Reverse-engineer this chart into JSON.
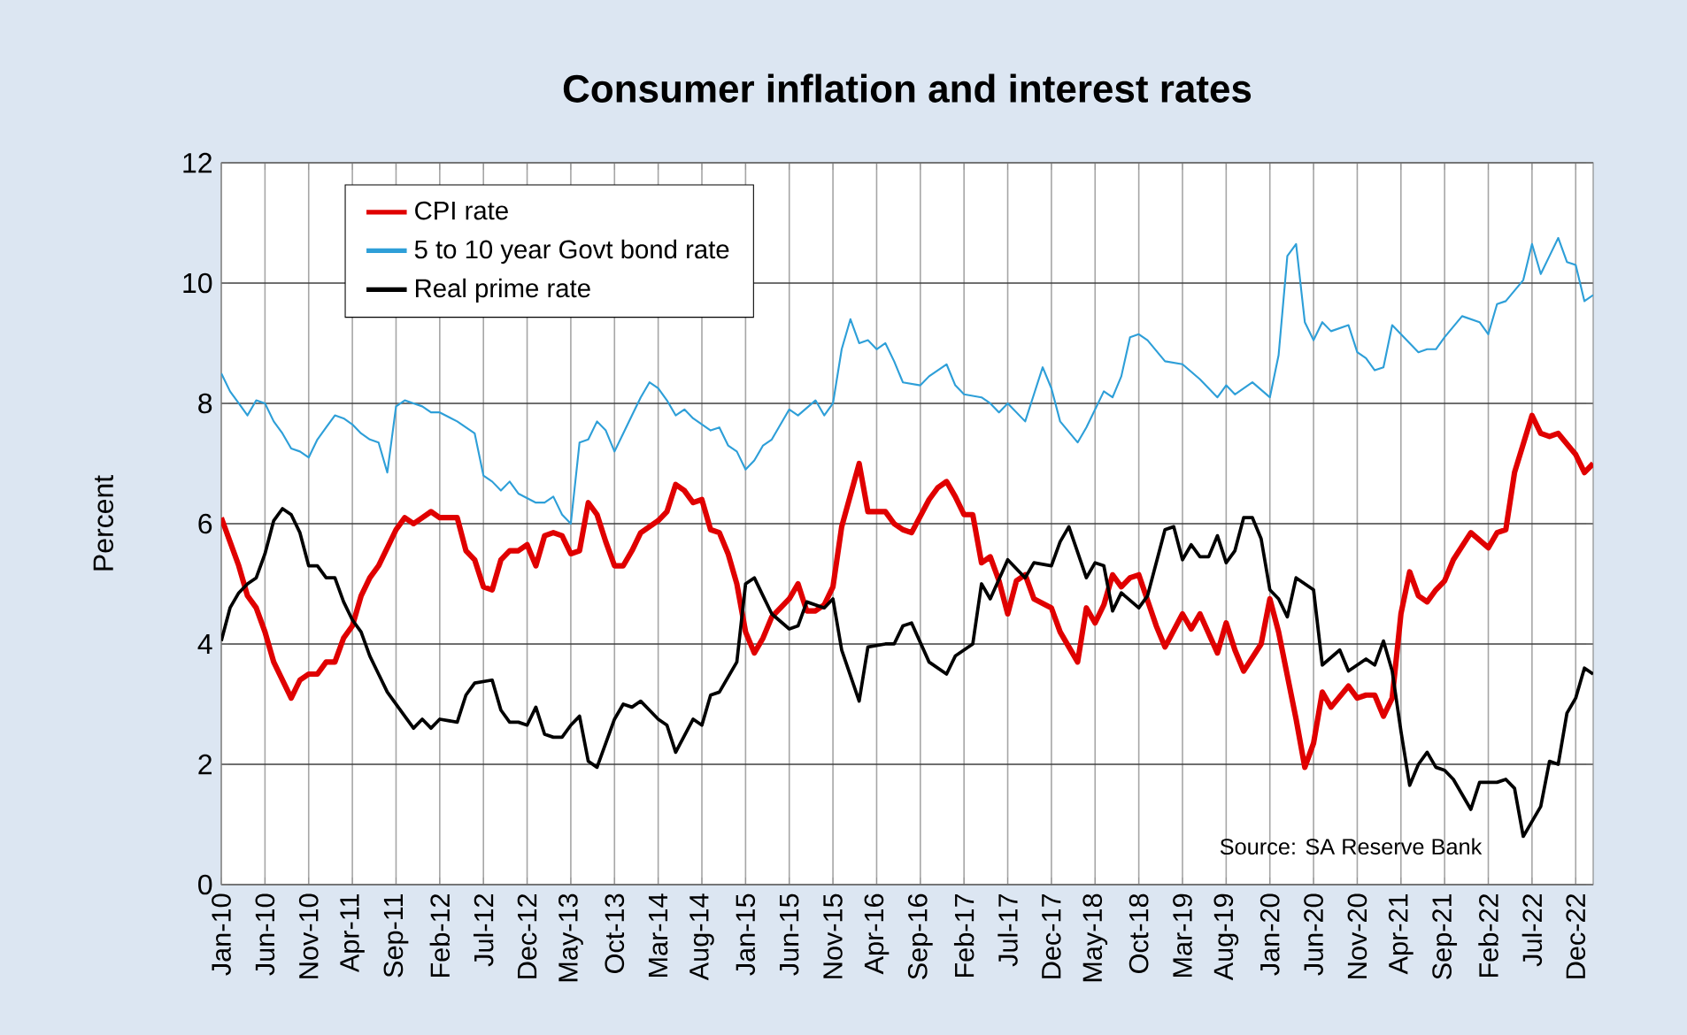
{
  "chart_data": {
    "type": "line",
    "title": "Consumer inflation and interest rates",
    "ylabel": "Percent",
    "xlim": [
      "2010-01",
      "2023-02"
    ],
    "ylim": [
      0,
      12
    ],
    "yticks": [
      0,
      2,
      4,
      6,
      8,
      10,
      12
    ],
    "xticks": [
      {
        "value": "2010-01",
        "label": "Jan-10"
      },
      {
        "value": "2010-06",
        "label": "Jun-10"
      },
      {
        "value": "2010-11",
        "label": "Nov-10"
      },
      {
        "value": "2011-04",
        "label": "Apr-11"
      },
      {
        "value": "2011-09",
        "label": "Sep-11"
      },
      {
        "value": "2012-02",
        "label": "Feb-12"
      },
      {
        "value": "2012-07",
        "label": "Jul-12"
      },
      {
        "value": "2012-12",
        "label": "Dec-12"
      },
      {
        "value": "2013-05",
        "label": "May-13"
      },
      {
        "value": "2013-10",
        "label": "Oct-13"
      },
      {
        "value": "2014-03",
        "label": "Mar-14"
      },
      {
        "value": "2014-08",
        "label": "Aug-14"
      },
      {
        "value": "2015-01",
        "label": "Jan-15"
      },
      {
        "value": "2015-06",
        "label": "Jun-15"
      },
      {
        "value": "2015-11",
        "label": "Nov-15"
      },
      {
        "value": "2016-04",
        "label": "Apr-16"
      },
      {
        "value": "2016-09",
        "label": "Sep-16"
      },
      {
        "value": "2017-02",
        "label": "Feb-17"
      },
      {
        "value": "2017-07",
        "label": "Jul-17"
      },
      {
        "value": "2017-12",
        "label": "Dec-17"
      },
      {
        "value": "2018-05",
        "label": "May-18"
      },
      {
        "value": "2018-10",
        "label": "Oct-18"
      },
      {
        "value": "2019-03",
        "label": "Mar-19"
      },
      {
        "value": "2019-08",
        "label": "Aug-19"
      },
      {
        "value": "2020-01",
        "label": "Jan-20"
      },
      {
        "value": "2020-06",
        "label": "Jun-20"
      },
      {
        "value": "2020-11",
        "label": "Nov-20"
      },
      {
        "value": "2021-04",
        "label": "Apr-21"
      },
      {
        "value": "2021-09",
        "label": "Sep-21"
      },
      {
        "value": "2022-02",
        "label": "Feb-22"
      },
      {
        "value": "2022-07",
        "label": "Jul-22"
      },
      {
        "value": "2022-12",
        "label": "Dec-22"
      }
    ],
    "grid": true,
    "legend": "top left",
    "annotations": [
      "Source: SA Reserve Bank"
    ],
    "series": [
      {
        "name": "CPI rate",
        "color": "#e00000",
        "x": [
          "2010-01",
          "2010-03",
          "2010-04",
          "2010-05",
          "2010-06",
          "2010-07",
          "2010-08",
          "2010-09",
          "2010-10",
          "2010-11",
          "2010-12",
          "2011-01",
          "2011-02",
          "2011-03",
          "2011-04",
          "2011-05",
          "2011-06",
          "2011-07",
          "2011-08",
          "2011-09",
          "2011-10",
          "2011-11",
          "2011-12",
          "2012-01",
          "2012-02",
          "2012-04",
          "2012-05",
          "2012-06",
          "2012-07",
          "2012-08",
          "2012-09",
          "2012-10",
          "2012-11",
          "2012-12",
          "2013-01",
          "2013-02",
          "2013-03",
          "2013-04",
          "2013-05",
          "2013-06",
          "2013-07",
          "2013-08",
          "2013-09",
          "2013-10",
          "2013-11",
          "2013-12",
          "2014-01",
          "2014-03",
          "2014-04",
          "2014-05",
          "2014-06",
          "2014-07",
          "2014-08",
          "2014-09",
          "2014-10",
          "2014-11",
          "2014-12",
          "2015-01",
          "2015-02",
          "2015-03",
          "2015-04",
          "2015-06",
          "2015-07",
          "2015-08",
          "2015-09",
          "2015-10",
          "2015-11",
          "2015-12",
          "2016-02",
          "2016-03",
          "2016-05",
          "2016-06",
          "2016-07",
          "2016-08",
          "2016-10",
          "2016-11",
          "2016-12",
          "2017-01",
          "2017-02",
          "2017-03",
          "2017-04",
          "2017-05",
          "2017-06",
          "2017-07",
          "2017-08",
          "2017-09",
          "2017-10",
          "2017-12",
          "2018-01",
          "2018-03",
          "2018-04",
          "2018-05",
          "2018-06",
          "2018-07",
          "2018-08",
          "2018-09",
          "2018-10",
          "2018-12",
          "2019-01",
          "2019-03",
          "2019-04",
          "2019-05",
          "2019-07",
          "2019-08",
          "2019-09",
          "2019-10",
          "2019-12",
          "2020-01",
          "2020-02",
          "2020-04",
          "2020-05",
          "2020-06",
          "2020-07",
          "2020-08",
          "2020-10",
          "2020-11",
          "2020-12",
          "2021-01",
          "2021-02",
          "2021-03",
          "2021-04",
          "2021-05",
          "2021-06",
          "2021-07",
          "2021-08",
          "2021-09",
          "2021-10",
          "2021-12",
          "2022-02",
          "2022-03",
          "2022-04",
          "2022-05",
          "2022-07",
          "2022-08",
          "2022-09",
          "2022-10",
          "2022-12",
          "2023-01",
          "2023-02"
        ],
        "values": [
          6.1,
          5.3,
          4.8,
          4.6,
          4.2,
          3.7,
          3.4,
          3.1,
          3.4,
          3.5,
          3.5,
          3.7,
          3.7,
          4.1,
          4.3,
          4.8,
          5.1,
          5.3,
          5.6,
          5.9,
          6.1,
          6.0,
          6.1,
          6.2,
          6.1,
          6.1,
          5.55,
          5.4,
          4.95,
          4.9,
          5.4,
          5.55,
          5.55,
          5.65,
          5.3,
          5.8,
          5.85,
          5.8,
          5.5,
          5.55,
          6.35,
          6.15,
          5.7,
          5.3,
          5.3,
          5.55,
          5.85,
          6.05,
          6.2,
          6.65,
          6.55,
          6.35,
          6.4,
          5.9,
          5.85,
          5.5,
          5.0,
          4.2,
          3.85,
          4.1,
          4.45,
          4.75,
          5.0,
          4.55,
          4.55,
          4.65,
          4.95,
          5.95,
          7.0,
          6.2,
          6.2,
          6.0,
          5.9,
          5.85,
          6.4,
          6.6,
          6.7,
          6.45,
          6.15,
          6.15,
          5.35,
          5.45,
          5.05,
          4.5,
          5.05,
          5.15,
          4.75,
          4.6,
          4.2,
          3.7,
          4.6,
          4.35,
          4.65,
          5.15,
          4.95,
          5.1,
          5.15,
          4.3,
          3.95,
          4.5,
          4.25,
          4.5,
          3.85,
          4.35,
          3.9,
          3.55,
          4.0,
          4.75,
          4.2,
          2.75,
          1.95,
          2.35,
          3.2,
          2.95,
          3.3,
          3.1,
          3.15,
          3.15,
          2.8,
          3.1,
          4.5,
          5.2,
          4.8,
          4.7,
          4.9,
          5.05,
          5.4,
          5.85,
          5.6,
          5.85,
          5.9,
          6.85,
          7.8,
          7.5,
          7.45,
          7.5,
          7.15,
          6.85,
          7.0
        ]
      },
      {
        "name": "5 to 10 year Govt bond rate",
        "color": "#2e9fd8",
        "x": [
          "2010-01",
          "2010-02",
          "2010-03",
          "2010-04",
          "2010-05",
          "2010-06",
          "2010-07",
          "2010-08",
          "2010-09",
          "2010-10",
          "2010-11",
          "2010-12",
          "2011-01",
          "2011-02",
          "2011-03",
          "2011-04",
          "2011-05",
          "2011-06",
          "2011-07",
          "2011-08",
          "2011-09",
          "2011-10",
          "2011-11",
          "2011-12",
          "2012-01",
          "2012-02",
          "2012-04",
          "2012-06",
          "2012-07",
          "2012-08",
          "2012-09",
          "2012-10",
          "2012-11",
          "2013-01",
          "2013-02",
          "2013-03",
          "2013-04",
          "2013-05",
          "2013-06",
          "2013-07",
          "2013-08",
          "2013-09",
          "2013-10",
          "2013-11",
          "2013-12",
          "2014-01",
          "2014-02",
          "2014-03",
          "2014-04",
          "2014-05",
          "2014-06",
          "2014-07",
          "2014-09",
          "2014-10",
          "2014-11",
          "2014-12",
          "2015-01",
          "2015-02",
          "2015-03",
          "2015-04",
          "2015-06",
          "2015-07",
          "2015-09",
          "2015-10",
          "2015-11",
          "2015-12",
          "2016-01",
          "2016-02",
          "2016-03",
          "2016-04",
          "2016-05",
          "2016-06",
          "2016-07",
          "2016-09",
          "2016-10",
          "2016-12",
          "2017-01",
          "2017-02",
          "2017-04",
          "2017-05",
          "2017-06",
          "2017-07",
          "2017-09",
          "2017-10",
          "2017-11",
          "2017-12",
          "2018-01",
          "2018-03",
          "2018-04",
          "2018-06",
          "2018-07",
          "2018-08",
          "2018-09",
          "2018-10",
          "2018-11",
          "2019-01",
          "2019-03",
          "2019-05",
          "2019-07",
          "2019-08",
          "2019-09",
          "2019-11",
          "2020-01",
          "2020-02",
          "2020-03",
          "2020-04",
          "2020-05",
          "2020-06",
          "2020-07",
          "2020-08",
          "2020-10",
          "2020-11",
          "2020-12",
          "2021-01",
          "2021-02",
          "2021-03",
          "2021-04",
          "2021-06",
          "2021-07",
          "2021-08",
          "2021-09",
          "2021-11",
          "2022-01",
          "2022-02",
          "2022-03",
          "2022-04",
          "2022-06",
          "2022-07",
          "2022-08",
          "2022-09",
          "2022-10",
          "2022-11",
          "2022-12",
          "2023-01",
          "2023-02"
        ],
        "values": [
          8.5,
          8.2,
          8.0,
          7.8,
          8.05,
          8.0,
          7.7,
          7.5,
          7.25,
          7.2,
          7.1,
          7.4,
          7.6,
          7.8,
          7.75,
          7.65,
          7.5,
          7.4,
          7.35,
          6.85,
          7.95,
          8.05,
          8.0,
          7.95,
          7.85,
          7.85,
          7.7,
          7.5,
          6.8,
          6.7,
          6.55,
          6.7,
          6.5,
          6.35,
          6.35,
          6.45,
          6.15,
          6.0,
          7.35,
          7.4,
          7.7,
          7.55,
          7.2,
          7.5,
          7.8,
          8.1,
          8.35,
          8.25,
          8.05,
          7.8,
          7.9,
          7.75,
          7.55,
          7.6,
          7.3,
          7.2,
          6.9,
          7.05,
          7.3,
          7.4,
          7.9,
          7.8,
          8.05,
          7.8,
          8.0,
          8.9,
          9.4,
          9.0,
          9.05,
          8.9,
          9.0,
          8.7,
          8.35,
          8.3,
          8.45,
          8.65,
          8.3,
          8.15,
          8.1,
          8.0,
          7.85,
          8.0,
          7.7,
          8.15,
          8.6,
          8.25,
          7.7,
          7.35,
          7.6,
          8.2,
          8.1,
          8.45,
          9.1,
          9.15,
          9.05,
          8.7,
          8.65,
          8.4,
          8.1,
          8.3,
          8.15,
          8.35,
          8.1,
          8.8,
          10.45,
          10.65,
          9.35,
          9.05,
          9.35,
          9.2,
          9.3,
          8.85,
          8.75,
          8.55,
          8.6,
          9.3,
          9.15,
          8.85,
          8.9,
          8.9,
          9.1,
          9.45,
          9.35,
          9.15,
          9.65,
          9.7,
          10.05,
          10.65,
          10.15,
          10.45,
          10.75,
          10.35,
          10.3,
          9.7,
          9.8
        ]
      },
      {
        "name": "Real prime rate",
        "color": "#000000",
        "x": [
          "2010-01",
          "2010-02",
          "2010-03",
          "2010-04",
          "2010-05",
          "2010-06",
          "2010-07",
          "2010-08",
          "2010-09",
          "2010-10",
          "2010-11",
          "2010-12",
          "2011-01",
          "2011-02",
          "2011-03",
          "2011-04",
          "2011-05",
          "2011-06",
          "2011-07",
          "2011-08",
          "2011-09",
          "2011-10",
          "2011-11",
          "2011-12",
          "2012-01",
          "2012-02",
          "2012-04",
          "2012-05",
          "2012-06",
          "2012-08",
          "2012-09",
          "2012-10",
          "2012-11",
          "2012-12",
          "2013-01",
          "2013-02",
          "2013-03",
          "2013-04",
          "2013-05",
          "2013-06",
          "2013-07",
          "2013-08",
          "2013-09",
          "2013-10",
          "2013-11",
          "2013-12",
          "2014-01",
          "2014-02",
          "2014-03",
          "2014-04",
          "2014-05",
          "2014-07",
          "2014-08",
          "2014-09",
          "2014-10",
          "2014-12",
          "2015-01",
          "2015-02",
          "2015-03",
          "2015-04",
          "2015-06",
          "2015-07",
          "2015-08",
          "2015-10",
          "2015-11",
          "2015-12",
          "2016-02",
          "2016-03",
          "2016-05",
          "2016-06",
          "2016-07",
          "2016-08",
          "2016-10",
          "2016-12",
          "2017-01",
          "2017-03",
          "2017-04",
          "2017-05",
          "2017-07",
          "2017-09",
          "2017-10",
          "2017-12",
          "2018-01",
          "2018-02",
          "2018-04",
          "2018-05",
          "2018-06",
          "2018-07",
          "2018-08",
          "2018-10",
          "2018-11",
          "2018-12",
          "2019-01",
          "2019-02",
          "2019-03",
          "2019-04",
          "2019-05",
          "2019-06",
          "2019-07",
          "2019-08",
          "2019-09",
          "2019-10",
          "2019-11",
          "2019-12",
          "2020-01",
          "2020-02",
          "2020-03",
          "2020-04",
          "2020-06",
          "2020-07",
          "2020-09",
          "2020-10",
          "2020-11",
          "2020-12",
          "2021-01",
          "2021-02",
          "2021-03",
          "2021-04",
          "2021-05",
          "2021-06",
          "2021-07",
          "2021-08",
          "2021-09",
          "2021-10",
          "2021-12",
          "2022-01",
          "2022-03",
          "2022-04",
          "2022-05",
          "2022-06",
          "2022-07",
          "2022-08",
          "2022-09",
          "2022-10",
          "2022-11",
          "2022-12",
          "2023-01",
          "2023-02"
        ],
        "values": [
          4.05,
          4.6,
          4.85,
          5.0,
          5.1,
          5.5,
          6.05,
          6.25,
          6.15,
          5.85,
          5.3,
          5.3,
          5.1,
          5.1,
          4.7,
          4.4,
          4.2,
          3.8,
          3.5,
          3.2,
          3.0,
          2.8,
          2.6,
          2.75,
          2.6,
          2.75,
          2.7,
          3.15,
          3.35,
          3.4,
          2.9,
          2.7,
          2.7,
          2.65,
          2.95,
          2.5,
          2.45,
          2.45,
          2.65,
          2.8,
          2.05,
          1.95,
          2.35,
          2.75,
          3.0,
          2.95,
          3.05,
          2.9,
          2.75,
          2.65,
          2.2,
          2.75,
          2.65,
          3.15,
          3.2,
          3.7,
          5.0,
          5.1,
          4.8,
          4.5,
          4.25,
          4.3,
          4.7,
          4.6,
          4.75,
          3.9,
          3.05,
          3.95,
          4.0,
          4.0,
          4.3,
          4.35,
          3.7,
          3.5,
          3.8,
          4.0,
          5.0,
          4.75,
          5.4,
          5.1,
          5.35,
          5.3,
          5.7,
          5.95,
          5.1,
          5.35,
          5.3,
          4.55,
          4.85,
          4.6,
          4.8,
          5.35,
          5.9,
          5.95,
          5.4,
          5.65,
          5.45,
          5.45,
          5.8,
          5.35,
          5.55,
          6.1,
          6.1,
          5.75,
          4.9,
          4.75,
          4.45,
          5.1,
          4.9,
          3.65,
          3.9,
          3.55,
          3.65,
          3.75,
          3.65,
          4.05,
          3.55,
          2.55,
          1.65,
          2.0,
          2.2,
          1.95,
          1.9,
          1.75,
          1.25,
          1.7,
          1.7,
          1.75,
          1.6,
          0.8,
          1.05,
          1.3,
          2.05,
          2.0,
          2.85,
          3.1,
          3.6,
          3.5
        ]
      }
    ]
  }
}
